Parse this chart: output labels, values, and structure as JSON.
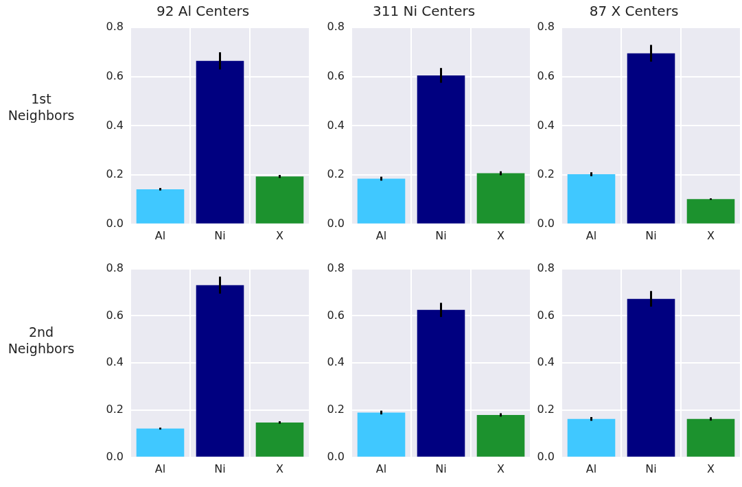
{
  "chart_data": [
    {
      "type": "bar",
      "title": "92 Al Centers",
      "ylabel": "1st Neighbors",
      "categories": [
        "Al",
        "Ni",
        "X"
      ],
      "values": [
        0.142,
        0.664,
        0.194
      ],
      "colors": [
        "#40c8ff",
        "#000080",
        "#1c922e"
      ],
      "errors": [
        0.005,
        0.035,
        0.006
      ],
      "ylim": [
        0,
        0.8
      ],
      "yticks": [
        {
          "value": 0,
          "label": "0.0"
        },
        {
          "value": 0.2,
          "label": "0.2"
        },
        {
          "value": 0.4,
          "label": "0.4"
        },
        {
          "value": 0.6,
          "label": "0.6"
        },
        {
          "value": 0.8,
          "label": "0.8"
        }
      ],
      "grid": true
    },
    {
      "type": "bar",
      "title": "311 Ni Centers",
      "categories": [
        "Al",
        "Ni",
        "X"
      ],
      "values": [
        0.185,
        0.605,
        0.207
      ],
      "colors": [
        "#40c8ff",
        "#000080",
        "#1c922e"
      ],
      "errors": [
        0.008,
        0.03,
        0.008
      ],
      "ylim": [
        0,
        0.8
      ],
      "yticks": [
        {
          "value": 0,
          "label": "0.0"
        },
        {
          "value": 0.2,
          "label": "0.2"
        },
        {
          "value": 0.4,
          "label": "0.4"
        },
        {
          "value": 0.6,
          "label": "0.6"
        },
        {
          "value": 0.8,
          "label": "0.8"
        }
      ],
      "grid": true
    },
    {
      "type": "bar",
      "title": "87 X Centers",
      "categories": [
        "Al",
        "Ni",
        "X"
      ],
      "values": [
        0.203,
        0.695,
        0.102
      ],
      "colors": [
        "#40c8ff",
        "#000080",
        "#1c922e"
      ],
      "errors": [
        0.008,
        0.034,
        0.003
      ],
      "ylim": [
        0,
        0.8
      ],
      "yticks": [
        {
          "value": 0,
          "label": "0.0"
        },
        {
          "value": 0.2,
          "label": "0.2"
        },
        {
          "value": 0.4,
          "label": "0.4"
        },
        {
          "value": 0.6,
          "label": "0.6"
        },
        {
          "value": 0.8,
          "label": "0.8"
        }
      ],
      "grid": true
    },
    {
      "type": "bar",
      "ylabel": "2nd Neighbors",
      "categories": [
        "Al",
        "Ni",
        "X"
      ],
      "values": [
        0.122,
        0.73,
        0.148
      ],
      "colors": [
        "#40c8ff",
        "#000080",
        "#1c922e"
      ],
      "errors": [
        0.004,
        0.036,
        0.005
      ],
      "ylim": [
        0,
        0.8
      ],
      "yticks": [
        {
          "value": 0,
          "label": "0.0"
        },
        {
          "value": 0.2,
          "label": "0.2"
        },
        {
          "value": 0.4,
          "label": "0.4"
        },
        {
          "value": 0.6,
          "label": "0.6"
        },
        {
          "value": 0.8,
          "label": "0.8"
        }
      ],
      "grid": true
    },
    {
      "type": "bar",
      "categories": [
        "Al",
        "Ni",
        "X"
      ],
      "values": [
        0.19,
        0.625,
        0.18
      ],
      "colors": [
        "#40c8ff",
        "#000080",
        "#1c922e"
      ],
      "errors": [
        0.008,
        0.03,
        0.007
      ],
      "ylim": [
        0,
        0.8
      ],
      "yticks": [
        {
          "value": 0,
          "label": "0.0"
        },
        {
          "value": 0.2,
          "label": "0.2"
        },
        {
          "value": 0.4,
          "label": "0.4"
        },
        {
          "value": 0.6,
          "label": "0.6"
        },
        {
          "value": 0.8,
          "label": "0.8"
        }
      ],
      "grid": true
    },
    {
      "type": "bar",
      "categories": [
        "Al",
        "Ni",
        "X"
      ],
      "values": [
        0.163,
        0.672,
        0.163
      ],
      "colors": [
        "#40c8ff",
        "#000080",
        "#1c922e"
      ],
      "errors": [
        0.008,
        0.033,
        0.007
      ],
      "ylim": [
        0,
        0.8
      ],
      "yticks": [
        {
          "value": 0,
          "label": "0.0"
        },
        {
          "value": 0.2,
          "label": "0.2"
        },
        {
          "value": 0.4,
          "label": "0.4"
        },
        {
          "value": 0.6,
          "label": "0.6"
        },
        {
          "value": 0.8,
          "label": "0.8"
        }
      ],
      "grid": true
    }
  ]
}
